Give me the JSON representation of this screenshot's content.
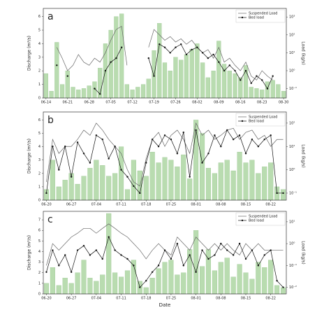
{
  "chart_data": [
    {
      "type": "bar-line",
      "label": "a",
      "ylabel": "Discharge (m³/s)",
      "y2label": "Load (kg/s)",
      "categories": [
        "06-14",
        null,
        null,
        null,
        "06-21",
        null,
        null,
        null,
        "06-28",
        null,
        null,
        null,
        "07-05",
        null,
        null,
        null,
        "07-12",
        null,
        null,
        null,
        "07-19",
        null,
        null,
        null,
        "07-26",
        null,
        null,
        null,
        "08-02",
        null,
        null,
        null,
        "08-09",
        null,
        null,
        null,
        "08-16",
        null,
        null,
        null,
        "08-23",
        null,
        null,
        null,
        "08-30"
      ],
      "values": [
        1.8,
        0.5,
        4.1,
        1.0,
        2.0,
        0.8,
        0.6,
        0.7,
        0.9,
        1.2,
        2.2,
        4.0,
        5.0,
        6.0,
        6.2,
        1.0,
        0.6,
        0.8,
        1.0,
        1.4,
        3.5,
        5.5,
        2.6,
        2.0,
        3.0,
        2.8,
        3.2,
        3.6,
        4.0,
        2.6,
        1.5,
        2.0,
        4.2,
        2.5,
        2.0,
        1.8,
        1.5,
        2.4,
        0.8,
        0.7,
        0.6,
        1.2,
        1.3,
        1.0,
        0.5
      ],
      "color": "#b9dcb0",
      "ylim": [
        0,
        6.6
      ],
      "yticks": [
        0,
        1,
        2,
        3,
        4,
        5,
        6
      ],
      "y2log": true,
      "y2lim": [
        0.03,
        3000
      ],
      "y2ticks": [
        {
          "value": 0.1,
          "label": "10⁻¹"
        },
        {
          "value": 1,
          "label": "10⁰"
        },
        {
          "value": 10,
          "label": "10¹"
        },
        {
          "value": 100,
          "label": "10²"
        },
        {
          "value": 1000,
          "label": "10³"
        }
      ],
      "legend": "upper right",
      "series": [
        {
          "name": "Suspended Load",
          "color": "#666666",
          "axis": "y2",
          "marker": false,
          "values": [
            null,
            null,
            20,
            5,
            1,
            2,
            8,
            3,
            2,
            5,
            3,
            10,
            50,
            200,
            300,
            2,
            null,
            null,
            null,
            20,
            200,
            100,
            50,
            80,
            40,
            60,
            30,
            50,
            20,
            10,
            15,
            5,
            20,
            3,
            5,
            2,
            1,
            3,
            0.5,
            0.3,
            1,
            0.5,
            0.3,
            null,
            null
          ]
        },
        {
          "name": "Bed load",
          "color": "#111111",
          "axis": "y2",
          "marker": true,
          "values": [
            null,
            null,
            2,
            null,
            0.5,
            null,
            null,
            null,
            null,
            0.1,
            0.05,
            1,
            3,
            5,
            20,
            null,
            null,
            null,
            null,
            5,
            0.5,
            30,
            20,
            10,
            20,
            30,
            8,
            15,
            20,
            10,
            5,
            8,
            3,
            1,
            2,
            1,
            0.3,
            1,
            0.2,
            0.5,
            0.3,
            0.1,
            0.5,
            null,
            null
          ]
        }
      ]
    },
    {
      "type": "bar-line",
      "label": "b",
      "ylabel": "Discharge (m³/s)",
      "y2label": "Load (kg/s)",
      "categories": [
        "06-20",
        null,
        null,
        null,
        "06-27",
        null,
        null,
        null,
        "07-04",
        null,
        null,
        null,
        "07-11",
        null,
        null,
        null,
        "07-18",
        null,
        null,
        null,
        "07-25",
        null,
        null,
        null,
        "08-01",
        null,
        null,
        null,
        "08-08",
        null,
        null,
        null,
        "08-15",
        null,
        null,
        null,
        "08-22",
        null,
        null
      ],
      "values": [
        0.8,
        3.0,
        1.0,
        1.5,
        2.0,
        1.2,
        1.8,
        2.4,
        3.0,
        2.6,
        1.8,
        2.0,
        4.0,
        0.8,
        3.0,
        2.2,
        1.8,
        3.6,
        2.8,
        3.2,
        3.0,
        2.5,
        3.4,
        1.6,
        6.0,
        5.0,
        2.4,
        2.0,
        2.8,
        3.0,
        2.2,
        3.6,
        2.8,
        3.0,
        2.0,
        2.5,
        2.8,
        1.0,
        0.8
      ],
      "color": "#b9dcb0",
      "ylim": [
        0,
        6.6
      ],
      "yticks": [
        0,
        1,
        2,
        3,
        4,
        5,
        6
      ],
      "y2log": true,
      "y2lim": [
        0.05,
        300
      ],
      "y2ticks": [
        {
          "value": 0.1,
          "label": "10⁻¹"
        },
        {
          "value": 1,
          "label": "10⁰"
        },
        {
          "value": 10,
          "label": "10¹"
        },
        {
          "value": 100,
          "label": "10²"
        }
      ],
      "legend": "upper right",
      "series": [
        {
          "name": "Suspended Load",
          "color": "#666666",
          "axis": "y2",
          "marker": false,
          "values": [
            0.3,
            20,
            5,
            10,
            10,
            20,
            50,
            30,
            100,
            50,
            20,
            10,
            5,
            1,
            0.3,
            0.2,
            3,
            20,
            40,
            10,
            30,
            50,
            20,
            5,
            100,
            30,
            50,
            20,
            30,
            50,
            60,
            20,
            40,
            50,
            20,
            30,
            10,
            20,
            20
          ]
        },
        {
          "name": "Bed load",
          "color": "#111111",
          "axis": "y2",
          "marker": true,
          "values": [
            0.1,
            10,
            1,
            10,
            0.5,
            15,
            5,
            2,
            30,
            20,
            3,
            10,
            1,
            0.5,
            0.2,
            0.1,
            2,
            20,
            10,
            30,
            20,
            5,
            40,
            0.5,
            50,
            2,
            5,
            30,
            10,
            50,
            20,
            30,
            5,
            20,
            10,
            20,
            30,
            0.1,
            0.1
          ]
        }
      ]
    },
    {
      "type": "bar-line",
      "label": "c",
      "ylabel": "Discharge (m³/s)",
      "y2label": "Load (kg/s)",
      "xlabel": "Date",
      "categories": [
        "06-20",
        null,
        null,
        null,
        "06-27",
        null,
        null,
        null,
        "07-04",
        null,
        null,
        null,
        "07-11",
        null,
        null,
        null,
        "07-18",
        null,
        null,
        null,
        "07-25",
        null,
        null,
        null,
        "08-01",
        null,
        null,
        null,
        "08-08",
        null,
        null,
        null,
        "08-15",
        null,
        null,
        null,
        "08-22",
        null,
        null
      ],
      "values": [
        1.0,
        2.5,
        0.8,
        1.5,
        1.0,
        2.0,
        3.2,
        1.5,
        1.2,
        1.8,
        7.6,
        2.0,
        1.6,
        2.2,
        3.2,
        1.2,
        0.6,
        1.5,
        2.4,
        3.0,
        3.2,
        1.8,
        2.0,
        4.2,
        6.0,
        2.6,
        4.2,
        2.2,
        3.0,
        3.4,
        1.6,
        2.8,
        2.0,
        1.4,
        3.0,
        2.5,
        3.2,
        0.8,
        0.6
      ],
      "color": "#b9dcb0",
      "ylim": [
        0,
        7.8
      ],
      "yticks": [
        0,
        1,
        2,
        3,
        4,
        5,
        6,
        7
      ],
      "y2log": true,
      "y2lim": [
        0.005,
        30
      ],
      "y2ticks": [
        {
          "value": 0.01,
          "label": "10⁻²"
        },
        {
          "value": 0.1,
          "label": "10⁻¹"
        },
        {
          "value": 1,
          "label": "10⁰"
        },
        {
          "value": 10,
          "label": "10¹"
        }
      ],
      "legend": "upper right",
      "series": [
        {
          "name": "Suspended Load",
          "color": "#666666",
          "axis": "y2",
          "marker": false,
          "values": [
            0.1,
            1,
            0.5,
            1,
            2,
            3,
            5,
            5,
            3,
            5,
            8,
            5,
            3,
            2,
            1,
            0.5,
            0.2,
            0.5,
            1,
            0.5,
            0.3,
            2,
            1,
            0.5,
            2,
            1,
            0.5,
            1,
            0.5,
            1,
            0.5,
            0.3,
            1,
            0.5,
            1,
            0.5,
            0.5,
            0.5,
            0.5
          ]
        },
        {
          "name": "Bed load",
          "color": "#111111",
          "axis": "y2",
          "marker": true,
          "values": [
            0.05,
            0.5,
            0.1,
            0.3,
            0.05,
            0.5,
            0.8,
            0.3,
            0.5,
            0.2,
            2,
            0.5,
            0.3,
            0.2,
            0.1,
            0.01,
            0.02,
            0.05,
            0.1,
            0.5,
            0.2,
            1,
            0.1,
            0.3,
            0.05,
            0.5,
            0.2,
            0.3,
            1,
            0.5,
            0.3,
            1,
            0.2,
            0.5,
            0.1,
            0.3,
            0.5,
            0.02,
            0.01
          ]
        }
      ]
    }
  ]
}
